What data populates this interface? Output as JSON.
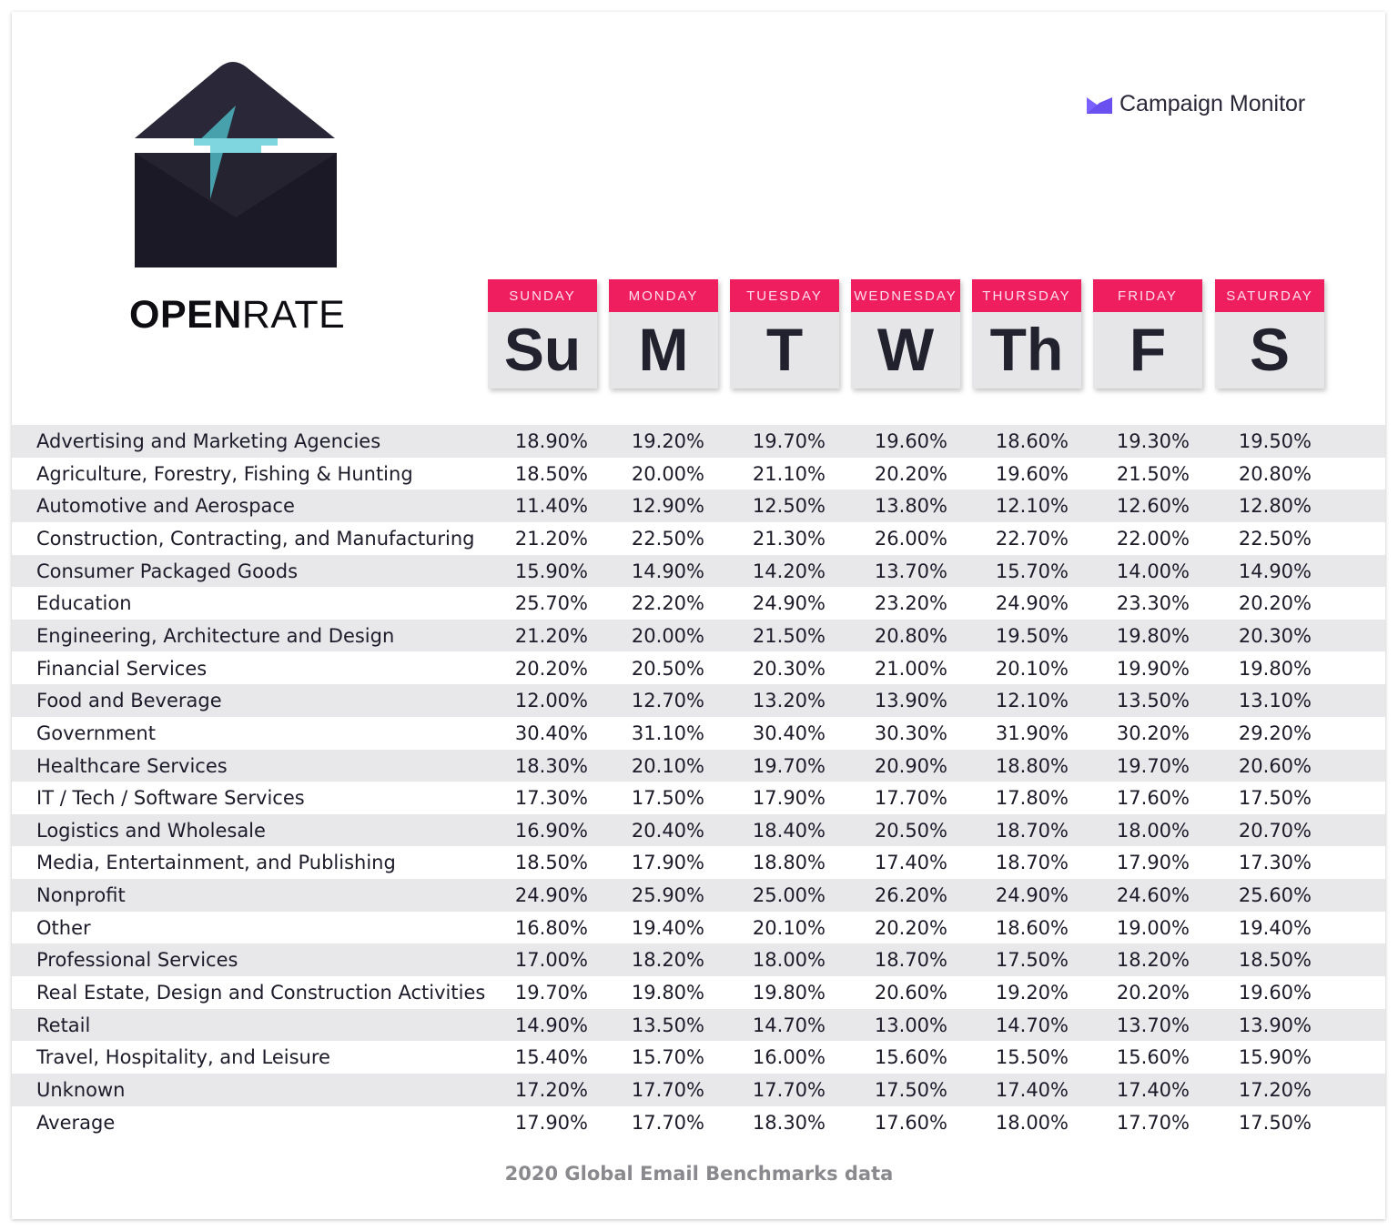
{
  "header": {
    "title_bold": "OPEN",
    "title_light": "RATE",
    "brand": "Campaign Monitor"
  },
  "colors": {
    "accent": "#ef1f5f",
    "dark": "#1c1b29",
    "teal": "#47a1ad",
    "brand": "#7b61ff"
  },
  "icons": {
    "main": "envelope-open-arrow-up-icon",
    "brand": "campaign-monitor-logo-icon"
  },
  "footer": "2020 Global Email Benchmarks data",
  "chart_data": {
    "type": "table",
    "title": "OPEN RATE",
    "columns": [
      {
        "day": "SUNDAY",
        "abbr": "Su"
      },
      {
        "day": "MONDAY",
        "abbr": "M"
      },
      {
        "day": "TUESDAY",
        "abbr": "T"
      },
      {
        "day": "WEDNESDAY",
        "abbr": "W"
      },
      {
        "day": "THURSDAY",
        "abbr": "Th"
      },
      {
        "day": "FRIDAY",
        "abbr": "F"
      },
      {
        "day": "SATURDAY",
        "abbr": "S"
      }
    ],
    "rows": [
      {
        "industry": "Advertising and Marketing Agencies",
        "values": [
          "18.90%",
          "19.20%",
          "19.70%",
          "19.60%",
          "18.60%",
          "19.30%",
          "19.50%"
        ]
      },
      {
        "industry": "Agriculture, Forestry, Fishing & Hunting",
        "values": [
          "18.50%",
          "20.00%",
          "21.10%",
          "20.20%",
          "19.60%",
          "21.50%",
          "20.80%"
        ]
      },
      {
        "industry": "Automotive and Aerospace",
        "values": [
          "11.40%",
          "12.90%",
          "12.50%",
          "13.80%",
          "12.10%",
          "12.60%",
          "12.80%"
        ]
      },
      {
        "industry": "Construction, Contracting, and Manufacturing",
        "values": [
          "21.20%",
          "22.50%",
          "21.30%",
          "26.00%",
          "22.70%",
          "22.00%",
          "22.50%"
        ]
      },
      {
        "industry": "Consumer Packaged Goods",
        "values": [
          "15.90%",
          "14.90%",
          "14.20%",
          "13.70%",
          "15.70%",
          "14.00%",
          "14.90%"
        ]
      },
      {
        "industry": "Education",
        "values": [
          "25.70%",
          "22.20%",
          "24.90%",
          "23.20%",
          "24.90%",
          "23.30%",
          "20.20%"
        ]
      },
      {
        "industry": "Engineering, Architecture and Design",
        "values": [
          "21.20%",
          "20.00%",
          "21.50%",
          "20.80%",
          "19.50%",
          "19.80%",
          "20.30%"
        ]
      },
      {
        "industry": "Financial Services",
        "values": [
          "20.20%",
          "20.50%",
          "20.30%",
          "21.00%",
          "20.10%",
          "19.90%",
          "19.80%"
        ]
      },
      {
        "industry": "Food and Beverage",
        "values": [
          "12.00%",
          "12.70%",
          "13.20%",
          "13.90%",
          "12.10%",
          "13.50%",
          "13.10%"
        ]
      },
      {
        "industry": "Government",
        "values": [
          "30.40%",
          "31.10%",
          "30.40%",
          "30.30%",
          "31.90%",
          "30.20%",
          "29.20%"
        ]
      },
      {
        "industry": "Healthcare Services",
        "values": [
          "18.30%",
          "20.10%",
          "19.70%",
          "20.90%",
          "18.80%",
          "19.70%",
          "20.60%"
        ]
      },
      {
        "industry": "IT / Tech / Software Services",
        "values": [
          "17.30%",
          "17.50%",
          "17.90%",
          "17.70%",
          "17.80%",
          "17.60%",
          "17.50%"
        ]
      },
      {
        "industry": "Logistics and Wholesale",
        "values": [
          "16.90%",
          "20.40%",
          "18.40%",
          "20.50%",
          "18.70%",
          "18.00%",
          "20.70%"
        ]
      },
      {
        "industry": "Media, Entertainment, and Publishing",
        "values": [
          "18.50%",
          "17.90%",
          "18.80%",
          "17.40%",
          "18.70%",
          "17.90%",
          "17.30%"
        ]
      },
      {
        "industry": "Nonprofit",
        "values": [
          "24.90%",
          "25.90%",
          "25.00%",
          "26.20%",
          "24.90%",
          "24.60%",
          "25.60%"
        ]
      },
      {
        "industry": "Other",
        "values": [
          "16.80%",
          "19.40%",
          "20.10%",
          "20.20%",
          "18.60%",
          "19.00%",
          "19.40%"
        ]
      },
      {
        "industry": "Professional Services",
        "values": [
          "17.00%",
          "18.20%",
          "18.00%",
          "18.70%",
          "17.50%",
          "18.20%",
          "18.50%"
        ]
      },
      {
        "industry": "Real Estate, Design and Construction Activities",
        "values": [
          "19.70%",
          "19.80%",
          "19.80%",
          "20.60%",
          "19.20%",
          "20.20%",
          "19.60%"
        ]
      },
      {
        "industry": "Retail",
        "values": [
          "14.90%",
          "13.50%",
          "14.70%",
          "13.00%",
          "14.70%",
          "13.70%",
          "13.90%"
        ]
      },
      {
        "industry": "Travel, Hospitality, and Leisure",
        "values": [
          "15.40%",
          "15.70%",
          "16.00%",
          "15.60%",
          "15.50%",
          "15.60%",
          "15.90%"
        ]
      },
      {
        "industry": "Unknown",
        "values": [
          "17.20%",
          "17.70%",
          "17.70%",
          "17.50%",
          "17.40%",
          "17.40%",
          "17.20%"
        ]
      },
      {
        "industry": "Average",
        "values": [
          "17.90%",
          "17.70%",
          "18.30%",
          "17.60%",
          "18.00%",
          "17.70%",
          "17.50%"
        ]
      }
    ]
  }
}
